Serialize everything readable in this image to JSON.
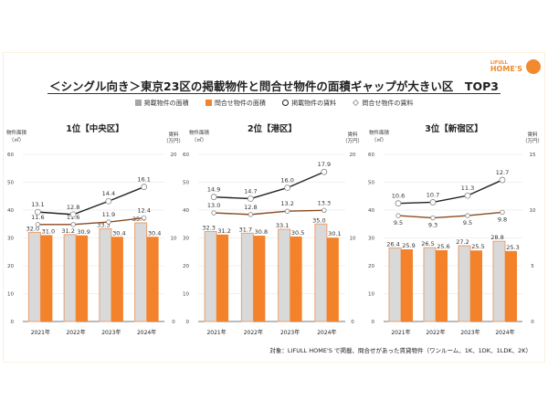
{
  "title": "＜シングル向き＞東京23区の掲載物件と問合せ物件の面積ギャップが大きい区　TOP3",
  "logo": {
    "top": "LIFULL",
    "bottom": "HOME'S"
  },
  "legend": [
    {
      "label": "掲載物件の面積",
      "color": "#d9d9d9",
      "marker": "square"
    },
    {
      "label": "問合せ物件の面積",
      "color": "#f4822a",
      "marker": "square"
    },
    {
      "label": "掲載物件の賃料",
      "color": "#222222",
      "marker": "circle"
    },
    {
      "label": "問合せ物件の賃料",
      "color": "#8b4a22",
      "marker": "diamond"
    }
  ],
  "footnote": "対象：LIFULL HOME'S で掲載、問合せがあった賃貸物件（ワンルーム、1K、1DK、1LDK、2K）",
  "colors": {
    "listed_area": "#d9d9d9",
    "listed_area_border": "#e9a170",
    "inquiry_area": "#f4822a",
    "listed_rent": "#222222",
    "inquiry_rent": "#8b4a22"
  },
  "chart_data": [
    {
      "type": "bar+line",
      "title": "1位【中央区】",
      "ylabel": "物件面積（㎡）",
      "y2label": "賃料（万円）",
      "categories": [
        "2021年",
        "2022年",
        "2023年",
        "2024年"
      ],
      "ylim": [
        0,
        60
      ],
      "yticks": [
        0,
        10,
        20,
        30,
        40,
        50,
        60
      ],
      "y2lim": [
        0,
        20
      ],
      "y2ticks": [
        0,
        10,
        20
      ],
      "grid": true,
      "series": [
        {
          "name": "掲載物件の面積",
          "type": "bar",
          "axis": "left",
          "values": [
            32.0,
            31.2,
            33.3,
            35.4
          ]
        },
        {
          "name": "問合せ物件の面積",
          "type": "bar",
          "axis": "left",
          "values": [
            31.0,
            30.9,
            30.4,
            30.4
          ]
        },
        {
          "name": "掲載物件の賃料",
          "type": "line",
          "axis": "right",
          "values": [
            13.1,
            12.8,
            14.4,
            16.1
          ]
        },
        {
          "name": "問合せ物件の賃料",
          "type": "line",
          "axis": "right",
          "values": [
            11.6,
            11.6,
            11.9,
            12.4
          ]
        }
      ]
    },
    {
      "type": "bar+line",
      "title": "2位【港区】",
      "ylabel": "物件面積（㎡）",
      "y2label": "賃料（万円）",
      "categories": [
        "2021年",
        "2022年",
        "2023年",
        "2024年"
      ],
      "ylim": [
        0,
        60
      ],
      "yticks": [
        0,
        10,
        20,
        30,
        40,
        50,
        60
      ],
      "y2lim": [
        0,
        20
      ],
      "y2ticks": [
        0,
        10,
        20
      ],
      "grid": true,
      "series": [
        {
          "name": "掲載物件の面積",
          "type": "bar",
          "axis": "left",
          "values": [
            32.3,
            31.7,
            33.1,
            35.0
          ]
        },
        {
          "name": "問合せ物件の面積",
          "type": "bar",
          "axis": "left",
          "values": [
            31.2,
            30.8,
            30.5,
            30.1
          ]
        },
        {
          "name": "掲載物件の賃料",
          "type": "line",
          "axis": "right",
          "values": [
            14.9,
            14.7,
            16.0,
            17.9
          ]
        },
        {
          "name": "問合せ物件の賃料",
          "type": "line",
          "axis": "right",
          "values": [
            13.0,
            12.8,
            13.2,
            13.3
          ]
        }
      ]
    },
    {
      "type": "bar+line",
      "title": "3位【新宿区】",
      "ylabel": "物件面積（㎡）",
      "y2label": "賃料（万円）",
      "categories": [
        "2021年",
        "2022年",
        "2023年",
        "2024年"
      ],
      "ylim": [
        0,
        60
      ],
      "yticks": [
        0,
        10,
        20,
        30,
        40,
        50,
        60
      ],
      "y2lim": [
        0,
        15
      ],
      "y2ticks": [
        0,
        5,
        10,
        15
      ],
      "grid": true,
      "series": [
        {
          "name": "掲載物件の面積",
          "type": "bar",
          "axis": "left",
          "values": [
            26.4,
            26.5,
            27.2,
            28.8
          ]
        },
        {
          "name": "問合せ物件の面積",
          "type": "bar",
          "axis": "left",
          "values": [
            25.9,
            25.6,
            25.5,
            25.3
          ]
        },
        {
          "name": "掲載物件の賃料",
          "type": "line",
          "axis": "right",
          "values": [
            10.6,
            10.7,
            11.3,
            12.7
          ]
        },
        {
          "name": "問合せ物件の賃料",
          "type": "line",
          "axis": "right",
          "values": [
            9.5,
            9.3,
            9.5,
            9.8
          ]
        }
      ]
    }
  ]
}
